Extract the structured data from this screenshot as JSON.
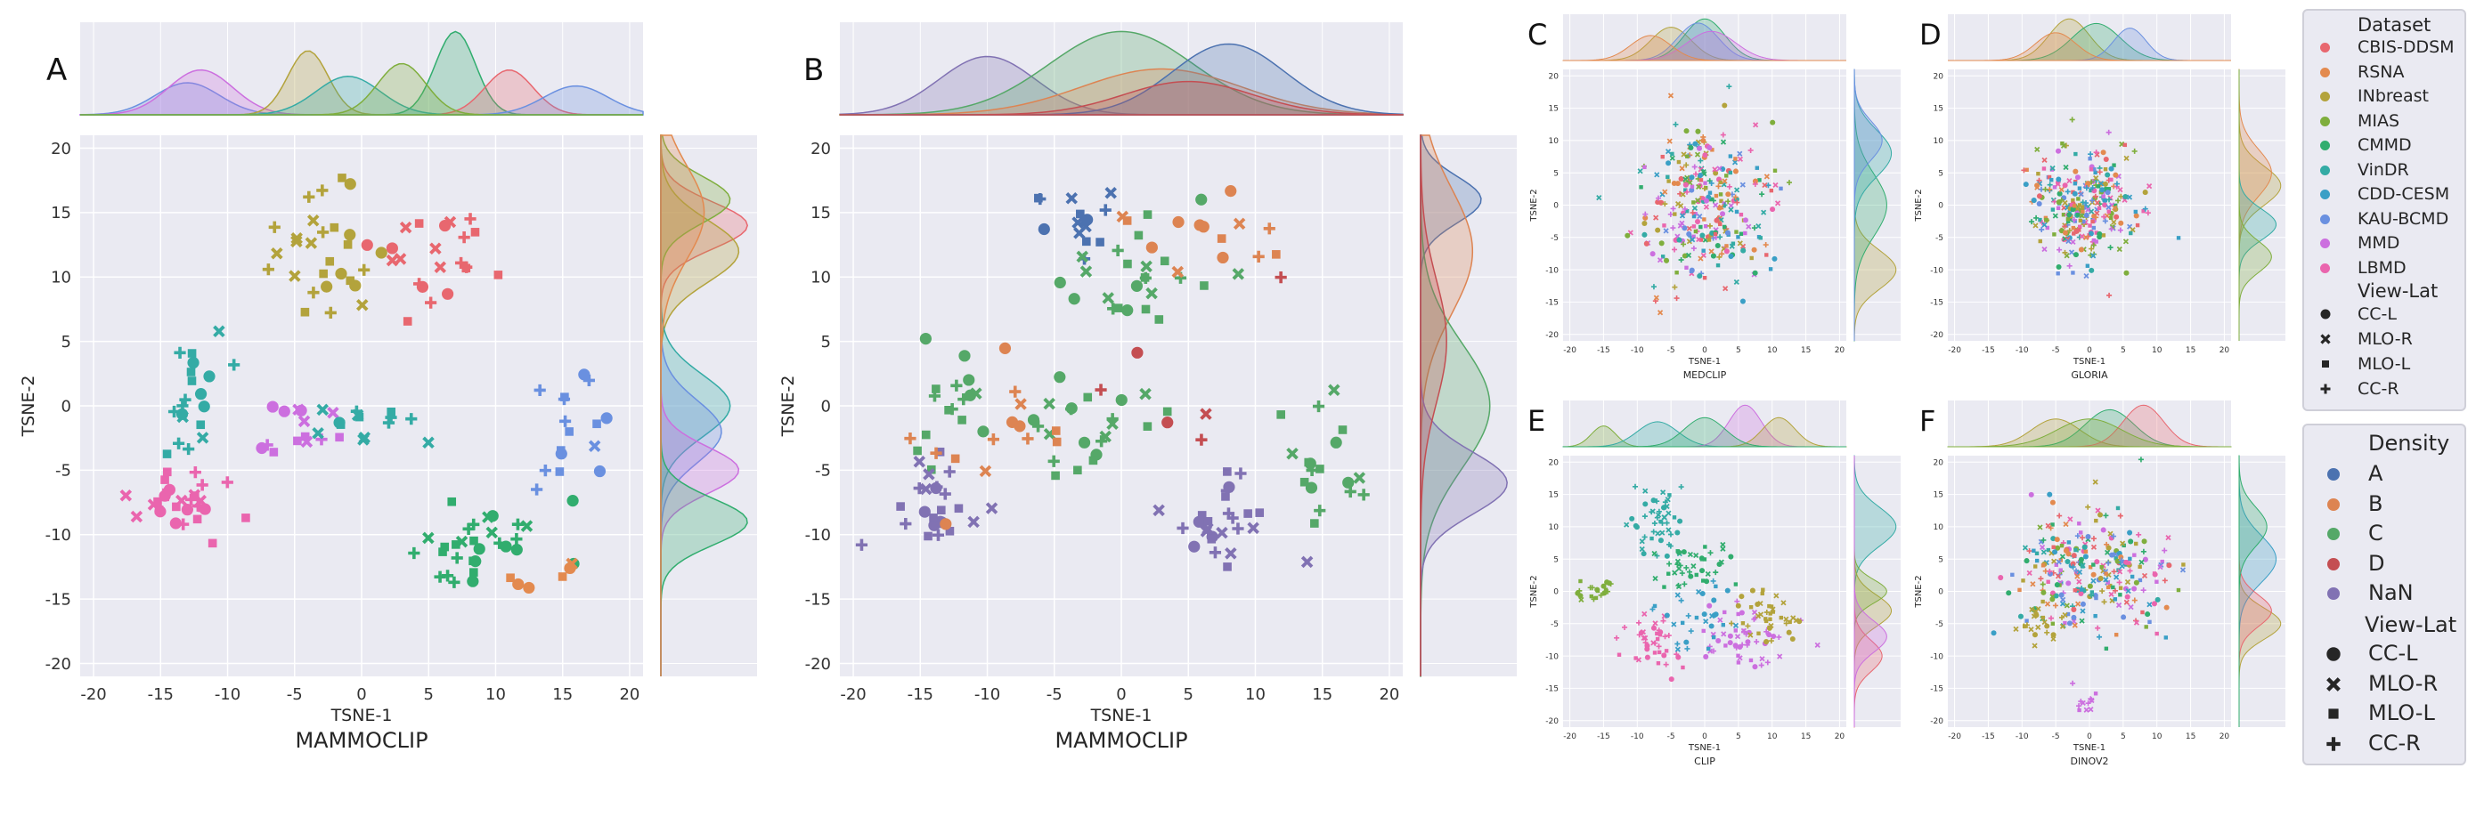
{
  "figure": {
    "panel_letters": [
      "A",
      "B",
      "C",
      "D",
      "E",
      "F"
    ]
  },
  "palette": {
    "dataset": [
      "#e8676f",
      "#e38a4f",
      "#b3a33c",
      "#7fae3d",
      "#31ad6e",
      "#34aba5",
      "#3a9fc6",
      "#6a90e0",
      "#cc6fdf",
      "#ea65ae"
    ],
    "density": [
      "#4c72b0",
      "#dd8452",
      "#55a868",
      "#c44e52",
      "#8172b3"
    ],
    "plot_bg": "#eaeaf2",
    "grid": "#ffffff"
  },
  "legend_dataset": {
    "title": "Dataset",
    "items": [
      "CBIS-DDSM",
      "RSNA",
      "INbreast",
      "MIAS",
      "CMMD",
      "VinDR",
      "CDD-CESM",
      "KAU-BCMD",
      "MMD",
      "LBMD"
    ],
    "view_title": "View-Lat",
    "views": [
      "CC-L",
      "MLO-R",
      "MLO-L",
      "CC-R"
    ]
  },
  "legend_density": {
    "title": "Density",
    "items": [
      "A",
      "B",
      "C",
      "D",
      "NaN"
    ],
    "view_title": "View-Lat",
    "views": [
      "CC-L",
      "MLO-R",
      "MLO-L",
      "CC-R"
    ]
  },
  "chart_data": [
    {
      "panel": "A",
      "type": "scatter",
      "hue": "Dataset",
      "style": "View-Lat",
      "title": "MAMMOCLIP",
      "xlabel": "TSNE-1",
      "ylabel": "TSNE-2",
      "xlim": [
        -21,
        21
      ],
      "ylim": [
        -21,
        21
      ],
      "xticks": [
        -20,
        -15,
        -10,
        -5,
        0,
        5,
        10,
        15,
        20
      ],
      "yticks": [
        -20,
        -15,
        -10,
        -5,
        0,
        5,
        10,
        15,
        20
      ],
      "clusters": [
        {
          "hue": 0,
          "center": [
            5,
            12
          ],
          "spread": [
            5,
            4
          ],
          "n": 22
        },
        {
          "hue": 2,
          "center": [
            -3,
            12
          ],
          "spread": [
            5,
            5
          ],
          "n": 28
        },
        {
          "hue": 5,
          "center": [
            -13,
            0
          ],
          "spread": [
            3,
            5
          ],
          "n": 20
        },
        {
          "hue": 9,
          "center": [
            -14,
            -7
          ],
          "spread": [
            4,
            3
          ],
          "n": 30
        },
        {
          "hue": 8,
          "center": [
            -5,
            -2
          ],
          "spread": [
            4,
            3
          ],
          "n": 14
        },
        {
          "hue": 5,
          "center": [
            0,
            -2
          ],
          "spread": [
            4,
            3
          ],
          "n": 14
        },
        {
          "hue": 4,
          "center": [
            9,
            -11
          ],
          "spread": [
            5,
            3
          ],
          "n": 30
        },
        {
          "hue": 7,
          "center": [
            16,
            -2
          ],
          "spread": [
            3,
            5
          ],
          "n": 16
        },
        {
          "hue": 1,
          "center": [
            14,
            -13
          ],
          "spread": [
            3,
            2
          ],
          "n": 6
        }
      ],
      "x_density": [
        {
          "hue": 7,
          "center": -13,
          "width": 4,
          "height": 0.5
        },
        {
          "hue": 8,
          "center": -12,
          "width": 4,
          "height": 0.7
        },
        {
          "hue": 2,
          "center": -4,
          "width": 2.5,
          "height": 1.0
        },
        {
          "hue": 4,
          "center": 7,
          "width": 2.5,
          "height": 1.3
        },
        {
          "hue": 0,
          "center": 11,
          "width": 3,
          "height": 0.7
        },
        {
          "hue": 7,
          "center": 16,
          "width": 4,
          "height": 0.45
        },
        {
          "hue": 5,
          "center": -1,
          "width": 4,
          "height": 0.6
        },
        {
          "hue": 3,
          "center": 3,
          "width": 3,
          "height": 0.8
        }
      ],
      "y_density": [
        {
          "hue": 0,
          "center": 14,
          "width": 3,
          "height": 1.0
        },
        {
          "hue": 2,
          "center": 12,
          "width": 4,
          "height": 0.9
        },
        {
          "hue": 3,
          "center": 16,
          "width": 3,
          "height": 0.8
        },
        {
          "hue": 5,
          "center": 0,
          "width": 4,
          "height": 0.8
        },
        {
          "hue": 7,
          "center": -2,
          "width": 4,
          "height": 0.7
        },
        {
          "hue": 8,
          "center": -5,
          "width": 3,
          "height": 0.9
        },
        {
          "hue": 4,
          "center": -9,
          "width": 3,
          "height": 1.0
        },
        {
          "hue": 1,
          "center": 15,
          "width": 6,
          "height": 0.5
        }
      ]
    },
    {
      "panel": "B",
      "type": "scatter",
      "hue": "Density",
      "style": "View-Lat",
      "title": "MAMMOCLIP",
      "xlabel": "TSNE-1",
      "ylabel": "TSNE-2",
      "xlim": [
        -21,
        21
      ],
      "ylim": [
        -21,
        21
      ],
      "xticks": [
        -20,
        -15,
        -10,
        -5,
        0,
        5,
        10,
        15,
        20
      ],
      "yticks": [
        -20,
        -15,
        -10,
        -5,
        0,
        5,
        10,
        15,
        20
      ],
      "clusters": [
        {
          "hue": 0,
          "center": [
            -3,
            14
          ],
          "spread": [
            4,
            3
          ],
          "n": 14
        },
        {
          "hue": 2,
          "center": [
            1,
            10
          ],
          "spread": [
            6,
            5
          ],
          "n": 24
        },
        {
          "hue": 1,
          "center": [
            5,
            13
          ],
          "spread": [
            5,
            4
          ],
          "n": 14
        },
        {
          "hue": 2,
          "center": [
            -13,
            0
          ],
          "spread": [
            3,
            5
          ],
          "n": 16
        },
        {
          "hue": 4,
          "center": [
            -14,
            -7
          ],
          "spread": [
            4,
            3
          ],
          "n": 24
        },
        {
          "hue": 2,
          "center": [
            -2,
            -2
          ],
          "spread": [
            5,
            3
          ],
          "n": 22
        },
        {
          "hue": 4,
          "center": [
            8,
            -9
          ],
          "spread": [
            4,
            3
          ],
          "n": 26
        },
        {
          "hue": 2,
          "center": [
            15,
            -4
          ],
          "spread": [
            3,
            4
          ],
          "n": 18
        },
        {
          "hue": 1,
          "center": [
            -10,
            -3
          ],
          "spread": [
            5,
            5
          ],
          "n": 14
        },
        {
          "hue": 3,
          "center": [
            6,
            2
          ],
          "spread": [
            8,
            8
          ],
          "n": 6
        }
      ],
      "x_density": [
        {
          "hue": 4,
          "center": -10,
          "width": 6,
          "height": 0.7
        },
        {
          "hue": 2,
          "center": 0,
          "width": 9,
          "height": 1.0
        },
        {
          "hue": 1,
          "center": 3,
          "width": 10,
          "height": 0.55
        },
        {
          "hue": 0,
          "center": 8,
          "width": 7,
          "height": 0.85
        },
        {
          "hue": 3,
          "center": 5,
          "width": 8,
          "height": 0.4
        }
      ],
      "y_density": [
        {
          "hue": 0,
          "center": 16,
          "width": 3,
          "height": 0.7
        },
        {
          "hue": 1,
          "center": 12,
          "width": 8,
          "height": 0.6
        },
        {
          "hue": 2,
          "center": 0,
          "width": 8,
          "height": 0.8
        },
        {
          "hue": 4,
          "center": -6,
          "width": 4,
          "height": 1.0
        },
        {
          "hue": 3,
          "center": 5,
          "width": 8,
          "height": 0.3
        }
      ]
    },
    {
      "panel": "C",
      "type": "scatter",
      "hue": "Dataset",
      "style": "View-Lat",
      "title": "MEDCLIP",
      "xlabel": "TSNE-1",
      "ylabel": "TSNE-2",
      "xlim": [
        -21,
        21
      ],
      "ylim": [
        -21,
        21
      ],
      "xticks": [
        -20,
        -15,
        -10,
        -5,
        0,
        5,
        10,
        15,
        20
      ],
      "yticks": [
        -20,
        -15,
        -10,
        -5,
        0,
        5,
        10,
        15,
        20
      ],
      "clusters": [
        {
          "hue": -1,
          "center": [
            0,
            0
          ],
          "spread": [
            9,
            12
          ],
          "n": 300
        }
      ],
      "x_density": [
        {
          "hue": 2,
          "center": -5,
          "width": 5,
          "height": 0.8
        },
        {
          "hue": 4,
          "center": 0,
          "width": 5,
          "height": 1.0
        },
        {
          "hue": 7,
          "center": -1,
          "width": 5,
          "height": 0.9
        },
        {
          "hue": 8,
          "center": 1,
          "width": 6,
          "height": 0.7
        },
        {
          "hue": 1,
          "center": -8,
          "width": 5,
          "height": 0.6
        }
      ],
      "y_density": [
        {
          "hue": 2,
          "center": -10,
          "width": 5,
          "height": 0.9
        },
        {
          "hue": 4,
          "center": 0,
          "width": 8,
          "height": 0.7
        },
        {
          "hue": 5,
          "center": 8,
          "width": 6,
          "height": 0.8
        },
        {
          "hue": 7,
          "center": 10,
          "width": 5,
          "height": 0.6
        }
      ]
    },
    {
      "panel": "D",
      "type": "scatter",
      "hue": "Dataset",
      "style": "View-Lat",
      "title": "GLORIA",
      "xlabel": "TSNE-1",
      "ylabel": "TSNE-2",
      "xlim": [
        -21,
        21
      ],
      "ylim": [
        -21,
        21
      ],
      "xticks": [
        -20,
        -15,
        -10,
        -5,
        0,
        5,
        10,
        15,
        20
      ],
      "yticks": [
        -20,
        -15,
        -10,
        -5,
        0,
        5,
        10,
        15,
        20
      ],
      "clusters": [
        {
          "hue": -1,
          "center": [
            -1,
            0
          ],
          "spread": [
            8,
            9
          ],
          "n": 300
        }
      ],
      "x_density": [
        {
          "hue": 2,
          "center": -3,
          "width": 5,
          "height": 0.9
        },
        {
          "hue": 4,
          "center": 1,
          "width": 6,
          "height": 0.8
        },
        {
          "hue": 7,
          "center": 6,
          "width": 4,
          "height": 0.7
        },
        {
          "hue": 1,
          "center": -5,
          "width": 5,
          "height": 0.6
        }
      ],
      "y_density": [
        {
          "hue": 2,
          "center": 3,
          "width": 5,
          "height": 0.9
        },
        {
          "hue": 1,
          "center": 5,
          "width": 6,
          "height": 0.7
        },
        {
          "hue": 5,
          "center": -3,
          "width": 4,
          "height": 0.8
        },
        {
          "hue": 3,
          "center": -8,
          "width": 4,
          "height": 0.7
        }
      ]
    },
    {
      "panel": "E",
      "type": "scatter",
      "hue": "Dataset",
      "style": "View-Lat",
      "title": "CLIP",
      "xlabel": "TSNE-1",
      "ylabel": "TSNE-2",
      "xlim": [
        -21,
        21
      ],
      "ylim": [
        -21,
        21
      ],
      "xticks": [
        -20,
        -15,
        -10,
        -5,
        0,
        5,
        10,
        15,
        20
      ],
      "yticks": [
        -20,
        -15,
        -10,
        -5,
        0,
        5,
        10,
        15,
        20
      ],
      "clusters": [
        {
          "hue": 5,
          "center": [
            -7,
            11
          ],
          "spread": [
            5,
            5
          ],
          "n": 50
        },
        {
          "hue": 4,
          "center": [
            -2,
            4
          ],
          "spread": [
            5,
            4
          ],
          "n": 40
        },
        {
          "hue": 3,
          "center": [
            -16,
            0
          ],
          "spread": [
            3,
            2
          ],
          "n": 20
        },
        {
          "hue": 8,
          "center": [
            5,
            -7
          ],
          "spread": [
            6,
            5
          ],
          "n": 50
        },
        {
          "hue": 2,
          "center": [
            10,
            -4
          ],
          "spread": [
            5,
            4
          ],
          "n": 40
        },
        {
          "hue": 9,
          "center": [
            -8,
            -8
          ],
          "spread": [
            5,
            5
          ],
          "n": 40
        },
        {
          "hue": 6,
          "center": [
            0,
            -4
          ],
          "spread": [
            6,
            5
          ],
          "n": 30
        }
      ],
      "x_density": [
        {
          "hue": 3,
          "center": -15,
          "width": 3,
          "height": 0.5
        },
        {
          "hue": 5,
          "center": -7,
          "width": 5,
          "height": 0.6
        },
        {
          "hue": 8,
          "center": 6,
          "width": 4,
          "height": 1.0
        },
        {
          "hue": 2,
          "center": 11,
          "width": 4,
          "height": 0.7
        },
        {
          "hue": 4,
          "center": 0,
          "width": 5,
          "height": 0.7
        }
      ],
      "y_density": [
        {
          "hue": 5,
          "center": 10,
          "width": 5,
          "height": 0.9
        },
        {
          "hue": 2,
          "center": -3,
          "width": 4,
          "height": 0.8
        },
        {
          "hue": 3,
          "center": 0,
          "width": 3,
          "height": 0.7
        },
        {
          "hue": 0,
          "center": -10,
          "width": 4,
          "height": 0.6
        },
        {
          "hue": 8,
          "center": -7,
          "width": 4,
          "height": 0.7
        }
      ]
    },
    {
      "panel": "F",
      "type": "scatter",
      "hue": "Dataset",
      "style": "View-Lat",
      "title": "DINOV2",
      "xlabel": "TSNE-1",
      "ylabel": "TSNE-2",
      "xlim": [
        -21,
        21
      ],
      "ylim": [
        -21,
        21
      ],
      "xticks": [
        -20,
        -15,
        -10,
        -5,
        0,
        5,
        10,
        15,
        20
      ],
      "yticks": [
        -20,
        -15,
        -10,
        -5,
        0,
        5,
        10,
        15,
        20
      ],
      "clusters": [
        {
          "hue": -1,
          "center": [
            0,
            3
          ],
          "spread": [
            12,
            9
          ],
          "n": 280
        },
        {
          "hue": 8,
          "center": [
            0,
            -17
          ],
          "spread": [
            2,
            2
          ],
          "n": 12
        },
        {
          "hue": 2,
          "center": [
            -8,
            -5
          ],
          "spread": [
            4,
            3
          ],
          "n": 20
        }
      ],
      "x_density": [
        {
          "hue": 2,
          "center": -5,
          "width": 6,
          "height": 0.6
        },
        {
          "hue": 4,
          "center": 3,
          "width": 6,
          "height": 0.8
        },
        {
          "hue": 0,
          "center": 8,
          "width": 5,
          "height": 0.9
        },
        {
          "hue": 3,
          "center": 0,
          "width": 8,
          "height": 0.6
        }
      ],
      "y_density": [
        {
          "hue": 2,
          "center": -5,
          "width": 4,
          "height": 0.9
        },
        {
          "hue": 6,
          "center": 5,
          "width": 6,
          "height": 0.8
        },
        {
          "hue": 0,
          "center": -3,
          "width": 4,
          "height": 0.7
        },
        {
          "hue": 4,
          "center": 10,
          "width": 5,
          "height": 0.6
        }
      ]
    }
  ]
}
